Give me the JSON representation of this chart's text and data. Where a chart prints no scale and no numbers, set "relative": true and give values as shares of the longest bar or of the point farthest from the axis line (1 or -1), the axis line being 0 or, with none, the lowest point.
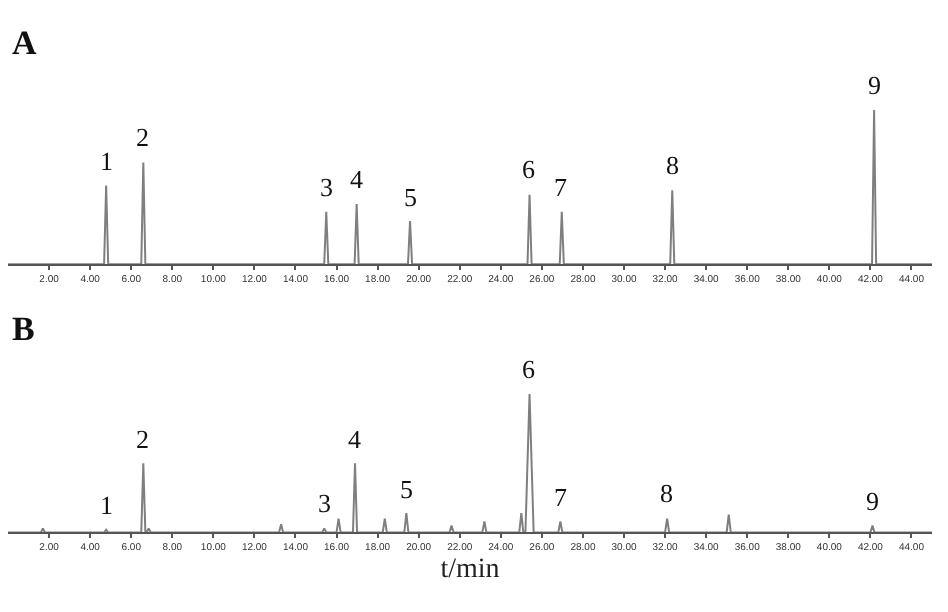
{
  "chart_data": [
    {
      "type": "line",
      "title": "A",
      "relative": true,
      "xlim": [
        0,
        45
      ],
      "xticks": [
        {
          "value": 2,
          "label": "2.00"
        },
        {
          "value": 4,
          "label": "4.00"
        },
        {
          "value": 6,
          "label": "6.00"
        },
        {
          "value": 8,
          "label": "8.00"
        },
        {
          "value": 10,
          "label": "10.00"
        },
        {
          "value": 12,
          "label": "12.00"
        },
        {
          "value": 14,
          "label": "14.00"
        },
        {
          "value": 16,
          "label": "16.00"
        },
        {
          "value": 18,
          "label": "18.00"
        },
        {
          "value": 20,
          "label": "20.00"
        },
        {
          "value": 22,
          "label": "22.00"
        },
        {
          "value": 24,
          "label": "24.00"
        },
        {
          "value": 26,
          "label": "26.00"
        },
        {
          "value": 28,
          "label": "28.00"
        },
        {
          "value": 30,
          "label": "30.00"
        },
        {
          "value": 32,
          "label": "32.00"
        },
        {
          "value": 34,
          "label": "34.00"
        },
        {
          "value": 36,
          "label": "36.00"
        },
        {
          "value": 38,
          "label": "38.00"
        },
        {
          "value": 40,
          "label": "40.00"
        },
        {
          "value": 42,
          "label": "42.00"
        },
        {
          "value": 44,
          "label": "44.00"
        }
      ],
      "tick_labels": "x",
      "series": [
        {
          "color": "#7f7f7f",
          "x": [
            0,
            4.68,
            4.78,
            4.88,
            6.49,
            6.59,
            6.69,
            15.4,
            15.5,
            15.6,
            16.88,
            16.98,
            17.08,
            19.48,
            19.58,
            19.68,
            25.3,
            25.4,
            25.5,
            26.87,
            26.97,
            27.07,
            32.25,
            32.35,
            32.45,
            42.08,
            42.18,
            42.28,
            45
          ],
          "values": [
            0,
            0,
            0.51,
            0,
            0,
            0.66,
            0,
            0,
            0.34,
            0,
            0,
            0.39,
            0,
            0,
            0.28,
            0,
            0,
            0.45,
            0,
            0,
            0.34,
            0,
            0,
            0.48,
            0,
            0,
            1,
            0,
            0
          ]
        }
      ],
      "annotations": [
        {
          "text": "1",
          "x": 4.78,
          "y": 0.51
        },
        {
          "text": "2",
          "x": 6.59,
          "y": 0.66
        },
        {
          "text": "3",
          "x": 15.5,
          "y": 0.34
        },
        {
          "text": "4",
          "x": 16.98,
          "y": 0.39
        },
        {
          "text": "5",
          "x": 19.58,
          "y": 0.28
        },
        {
          "text": "6",
          "x": 25.4,
          "y": 0.45
        },
        {
          "text": "7",
          "x": 26.97,
          "y": 0.34
        },
        {
          "text": "8",
          "x": 32.35,
          "y": 0.48
        },
        {
          "text": "9",
          "x": 42.18,
          "y": 1
        }
      ]
    },
    {
      "type": "line",
      "title": "B",
      "relative": true,
      "xlim": [
        0,
        45
      ],
      "xlabel": "t/min",
      "xticks": [
        {
          "value": 2,
          "label": "2.00"
        },
        {
          "value": 4,
          "label": "4.00"
        },
        {
          "value": 6,
          "label": "6.00"
        },
        {
          "value": 8,
          "label": "8.00"
        },
        {
          "value": 10,
          "label": "10.00"
        },
        {
          "value": 12,
          "label": "12.00"
        },
        {
          "value": 14,
          "label": "14.00"
        },
        {
          "value": 16,
          "label": "16.00"
        },
        {
          "value": 18,
          "label": "18.00"
        },
        {
          "value": 20,
          "label": "20.00"
        },
        {
          "value": 22,
          "label": "22.00"
        },
        {
          "value": 24,
          "label": "24.00"
        },
        {
          "value": 26,
          "label": "26.00"
        },
        {
          "value": 28,
          "label": "28.00"
        },
        {
          "value": 30,
          "label": "30.00"
        },
        {
          "value": 32,
          "label": "32.00"
        },
        {
          "value": 34,
          "label": "34.00"
        },
        {
          "value": 36,
          "label": "36.00"
        },
        {
          "value": 38,
          "label": "38.00"
        },
        {
          "value": 40,
          "label": "40.00"
        },
        {
          "value": 42,
          "label": "42.00"
        },
        {
          "value": 44,
          "label": "44.00"
        }
      ],
      "tick_labels": "x",
      "series": [
        {
          "color": "#7f7f7f",
          "x": [
            0,
            1.6,
            1.7,
            1.8,
            4.68,
            4.78,
            4.88,
            6.49,
            6.59,
            6.69,
            6.75,
            6.85,
            6.95,
            13.2,
            13.3,
            13.4,
            15.3,
            15.4,
            15.5,
            16.0,
            16.1,
            16.2,
            16.8,
            16.9,
            17.0,
            18.25,
            18.35,
            18.45,
            19.3,
            19.4,
            19.5,
            21.5,
            21.6,
            21.7,
            23.1,
            23.2,
            23.3,
            24.9,
            25.0,
            25.1,
            25.2,
            25.4,
            25.6,
            26.8,
            26.9,
            27.0,
            32.0,
            32.1,
            32.2,
            35.0,
            35.1,
            35.2,
            42.0,
            42.1,
            42.2,
            45
          ],
          "values": [
            0,
            0,
            0.03,
            0,
            0,
            0.02,
            0,
            0,
            0.5,
            0,
            0,
            0.03,
            0,
            0,
            0.06,
            0,
            0,
            0.03,
            0,
            0,
            0.1,
            0,
            0,
            0.5,
            0,
            0,
            0.1,
            0,
            0,
            0.14,
            0,
            0,
            0.05,
            0,
            0,
            0.08,
            0,
            0,
            0.14,
            0,
            0,
            1,
            0,
            0,
            0.08,
            0,
            0,
            0.1,
            0,
            0,
            0.13,
            0,
            0,
            0.05,
            0,
            0
          ]
        }
      ],
      "annotations": [
        {
          "text": "1",
          "x": 4.78,
          "y": 0.02
        },
        {
          "text": "2",
          "x": 6.59,
          "y": 0.5
        },
        {
          "text": "3",
          "x": 15.4,
          "y": 0.03
        },
        {
          "text": "4",
          "x": 16.9,
          "y": 0.5
        },
        {
          "text": "5",
          "x": 19.4,
          "y": 0.14
        },
        {
          "text": "6",
          "x": 25.4,
          "y": 1
        },
        {
          "text": "7",
          "x": 26.9,
          "y": 0.08
        },
        {
          "text": "8",
          "x": 32.1,
          "y": 0.1
        },
        {
          "text": "9",
          "x": 42.1,
          "y": 0.05
        }
      ]
    }
  ]
}
